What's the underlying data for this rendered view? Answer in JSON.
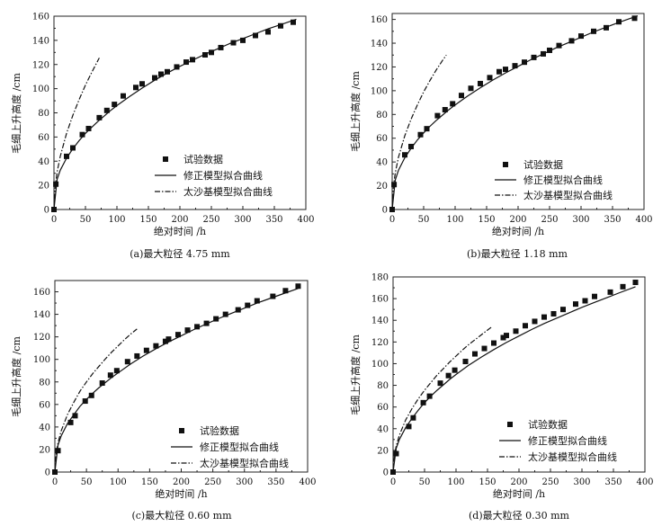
{
  "chart_data": [
    {
      "type": "scatter",
      "caption": "(a)最大粒径 4.75 mm",
      "xlabel": "绝对时间 /h",
      "ylabel": "毛细上升高度 /cm",
      "xlim": [
        0,
        400
      ],
      "ylim": [
        0,
        160
      ],
      "xticks": [
        0,
        50,
        100,
        150,
        200,
        250,
        300,
        350,
        400
      ],
      "yticks": [
        0,
        20,
        40,
        60,
        80,
        100,
        120,
        140,
        160
      ],
      "legend": [
        "试验数据",
        "修正模型拟合曲线",
        "太沙基模型拟合曲线"
      ],
      "legend_position": "center-left",
      "series": [
        {
          "name": "试验数据",
          "style": "square-markers",
          "x": [
            0,
            3,
            20,
            30,
            45,
            55,
            72,
            84,
            96,
            110,
            130,
            140,
            160,
            170,
            180,
            195,
            210,
            220,
            240,
            250,
            265,
            285,
            300,
            320,
            340,
            360,
            380
          ],
          "y": [
            0,
            21,
            44,
            51,
            62,
            67,
            76,
            82,
            87,
            94,
            101,
            104,
            109,
            112,
            114,
            118,
            122,
            124,
            128,
            130,
            134,
            138,
            140,
            144,
            147,
            152,
            155
          ]
        },
        {
          "name": "修正模型拟合曲线",
          "style": "solid",
          "x": [
            0,
            5,
            10,
            20,
            30,
            40,
            50,
            60,
            70,
            80,
            90,
            100,
            120,
            140,
            160,
            180,
            200,
            220,
            240,
            260,
            280,
            300,
            320,
            340,
            360,
            385
          ],
          "y": [
            0,
            25,
            32.5,
            42.5,
            50.3,
            57,
            63,
            68,
            73,
            77.5,
            82,
            86,
            93.5,
            100.5,
            107,
            113,
            118.5,
            123.5,
            128.5,
            133,
            137.5,
            141.5,
            145.5,
            149.5,
            153,
            157.5
          ]
        },
        {
          "name": "太沙基模型拟合曲线",
          "style": "dash-dot",
          "x": [
            0,
            2,
            5,
            10,
            20,
            30,
            40,
            50,
            60,
            70,
            72
          ],
          "y": [
            0,
            19.5,
            31,
            44,
            63,
            78,
            91,
            103,
            113.5,
            123.5,
            125.5
          ]
        }
      ]
    },
    {
      "type": "scatter",
      "caption": "(b)最大粒径 1.18 mm",
      "xlabel": "绝对时间 /h",
      "ylabel": "毛细上升高度 /cm",
      "xlim": [
        0,
        400
      ],
      "ylim": [
        0,
        165
      ],
      "xticks": [
        0,
        50,
        100,
        150,
        200,
        250,
        300,
        350,
        400
      ],
      "yticks": [
        0,
        20,
        40,
        60,
        80,
        100,
        120,
        140,
        160
      ],
      "legend": [
        "试验数据",
        "修正模型拟合曲线",
        "太沙基模型拟合曲线"
      ],
      "legend_position": "center-right",
      "series": [
        {
          "name": "试验数据",
          "style": "square-markers",
          "x": [
            0,
            3,
            20,
            30,
            45,
            55,
            72,
            84,
            96,
            110,
            125,
            140,
            155,
            170,
            180,
            195,
            210,
            225,
            240,
            250,
            265,
            285,
            300,
            320,
            340,
            360,
            385
          ],
          "y": [
            0,
            21,
            46,
            53,
            63,
            68,
            79,
            84,
            89,
            96,
            102,
            106,
            111,
            116,
            118,
            121,
            124,
            128,
            131,
            134,
            138,
            142,
            146,
            150,
            153,
            158,
            161
          ]
        },
        {
          "name": "修正模型拟合曲线",
          "style": "solid",
          "x": [
            0,
            5,
            10,
            20,
            30,
            40,
            50,
            60,
            70,
            80,
            90,
            100,
            120,
            140,
            160,
            180,
            200,
            220,
            240,
            260,
            280,
            300,
            320,
            340,
            360,
            390
          ],
          "y": [
            0,
            25,
            33,
            43.5,
            51.5,
            58.5,
            64.5,
            70,
            75,
            79.5,
            84,
            88,
            95.5,
            102.5,
            109,
            115,
            120.5,
            126,
            131,
            136,
            140.5,
            145,
            149.5,
            153.5,
            157.5,
            163
          ]
        },
        {
          "name": "太沙基模型拟合曲线",
          "style": "dash-dot",
          "x": [
            0,
            2,
            5,
            10,
            20,
            30,
            40,
            50,
            60,
            70,
            80,
            86
          ],
          "y": [
            0,
            19.5,
            31,
            44,
            62,
            76,
            88,
            99,
            108.5,
            117.5,
            125.5,
            130
          ]
        }
      ]
    },
    {
      "type": "scatter",
      "caption": "(c)最大粒径 0.60 mm",
      "xlabel": "绝对时间 /h",
      "ylabel": "毛细上升高度 /cm",
      "xlim": [
        0,
        400
      ],
      "ylim": [
        0,
        170
      ],
      "xticks": [
        0,
        50,
        100,
        150,
        200,
        250,
        300,
        350,
        400
      ],
      "yticks": [
        0,
        20,
        40,
        60,
        80,
        100,
        120,
        140,
        160
      ],
      "legend": [
        "试验数据",
        "修正模型拟合曲线",
        "太沙基模型拟合曲线"
      ],
      "legend_position": "bottom-right",
      "series": [
        {
          "name": "试验数据",
          "style": "square-markers",
          "x": [
            0,
            5,
            25,
            32,
            48,
            58,
            75,
            88,
            98,
            115,
            130,
            145,
            160,
            175,
            180,
            195,
            210,
            225,
            240,
            255,
            270,
            290,
            305,
            320,
            345,
            365,
            385
          ],
          "y": [
            0,
            19,
            44,
            50,
            63,
            68,
            79,
            86,
            90,
            98,
            103,
            108,
            112,
            116,
            118,
            122,
            126,
            129,
            132,
            136,
            140,
            144,
            148,
            152,
            156,
            161,
            165
          ]
        },
        {
          "name": "修正模型拟合曲线",
          "style": "solid",
          "x": [
            0,
            5,
            10,
            20,
            30,
            40,
            50,
            60,
            70,
            80,
            90,
            100,
            120,
            140,
            160,
            180,
            200,
            220,
            240,
            260,
            280,
            300,
            320,
            340,
            360,
            385
          ],
          "y": [
            0,
            24,
            32,
            43,
            51,
            58.5,
            64.5,
            70,
            75,
            79.5,
            84,
            88,
            96,
            103,
            109.5,
            115.5,
            121,
            126.5,
            131.5,
            136.5,
            141,
            145.5,
            150,
            154,
            158,
            163
          ]
        },
        {
          "name": "太沙基模型拟合曲线",
          "style": "dash-dot",
          "x": [
            0,
            2,
            5,
            10,
            20,
            30,
            40,
            50,
            60,
            70,
            80,
            90,
            100,
            110,
            120,
            130
          ],
          "y": [
            0,
            16,
            26,
            36.5,
            51,
            62,
            72,
            80,
            87.5,
            94,
            100.5,
            106.5,
            112,
            117.5,
            122.5,
            127
          ]
        }
      ]
    },
    {
      "type": "scatter",
      "caption": "(d)最大粒径 0.30 mm",
      "xlabel": "绝对时间 /h",
      "ylabel": "毛细上升高度 /cm",
      "xlim": [
        0,
        400
      ],
      "ylim": [
        0,
        180
      ],
      "xticks": [
        0,
        50,
        100,
        150,
        200,
        250,
        300,
        350,
        400
      ],
      "yticks": [
        0,
        20,
        40,
        60,
        80,
        100,
        120,
        140,
        160,
        180
      ],
      "legend": [
        "试验数据",
        "修正模型拟合曲线",
        "太沙基模型拟合曲线"
      ],
      "legend_position": "bottom-right",
      "series": [
        {
          "name": "试验数据",
          "style": "square-markers",
          "x": [
            0,
            5,
            25,
            32,
            48,
            58,
            75,
            88,
            98,
            115,
            130,
            145,
            160,
            175,
            180,
            195,
            210,
            225,
            240,
            255,
            270,
            290,
            305,
            320,
            345,
            365,
            385
          ],
          "y": [
            0,
            17,
            42,
            50,
            64,
            70,
            82,
            89,
            94,
            102,
            109,
            114,
            119,
            124,
            126,
            130,
            135,
            139,
            143,
            146,
            150,
            155,
            158,
            162,
            166,
            171,
            175
          ]
        },
        {
          "name": "修正模型拟合曲线",
          "style": "solid",
          "x": [
            0,
            5,
            10,
            20,
            30,
            40,
            50,
            60,
            70,
            80,
            90,
            100,
            120,
            140,
            160,
            180,
            200,
            220,
            240,
            260,
            280,
            300,
            320,
            340,
            360,
            385
          ],
          "y": [
            0,
            22,
            30,
            41,
            49.5,
            57,
            64,
            70,
            75.5,
            80.5,
            85.5,
            90,
            98.5,
            106,
            113,
            119.5,
            125.5,
            131.5,
            137,
            142,
            147,
            152,
            156.5,
            161,
            165.5,
            171
          ]
        },
        {
          "name": "太沙基模型拟合曲线",
          "style": "dash-dot",
          "x": [
            0,
            2,
            5,
            10,
            20,
            30,
            40,
            50,
            60,
            70,
            80,
            90,
            100,
            110,
            120,
            130,
            140,
            150,
            158
          ],
          "y": [
            0,
            15,
            24,
            34,
            48,
            58.5,
            67.5,
            75.5,
            82.5,
            89.5,
            95.5,
            101.5,
            107,
            112.5,
            117.5,
            122,
            126.5,
            131,
            134.5
          ]
        }
      ]
    }
  ]
}
